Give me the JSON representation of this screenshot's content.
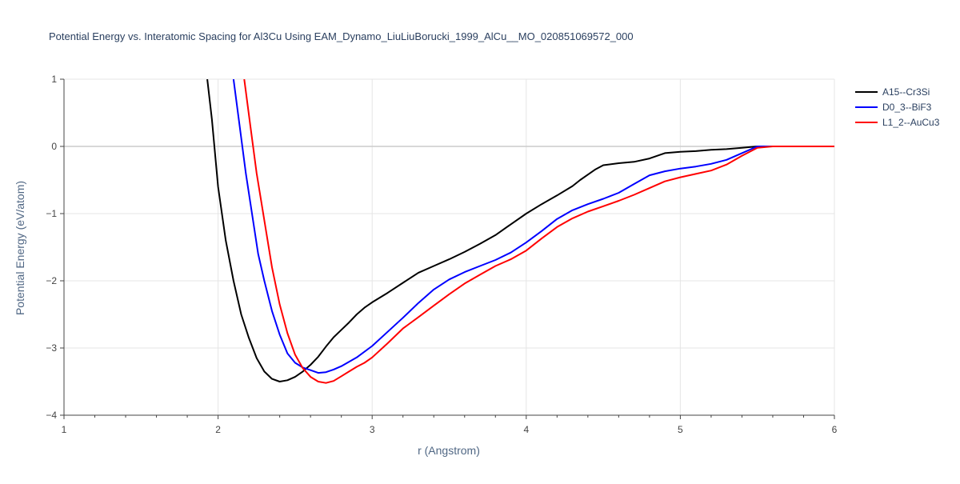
{
  "chart_data": {
    "type": "line",
    "title": "Potential Energy vs. Interatomic Spacing for Al3Cu Using EAM_Dynamo_LiuLiuBorucki_1999_AlCu__MO_020851069572_000",
    "xlabel": "r (Angstrom)",
    "ylabel": "Potential Energy (eV/atom)",
    "xlim": [
      1,
      6
    ],
    "ylim": [
      -4,
      1
    ],
    "xticks": [
      1,
      2,
      3,
      4,
      5,
      6
    ],
    "xtick_labels": [
      "1",
      "2",
      "3",
      "4",
      "5",
      "6"
    ],
    "yticks": [
      1,
      0,
      -1,
      -2,
      -3,
      -4
    ],
    "ytick_labels": [
      "1",
      "0",
      "−1",
      "−2",
      "−3",
      "−4"
    ],
    "grid": true,
    "legend_position": "top-right",
    "series": [
      {
        "name": "A15--Cr3Si",
        "color": "#000000",
        "points": [
          [
            1.93,
            1.0
          ],
          [
            1.96,
            0.4
          ],
          [
            2.0,
            -0.6
          ],
          [
            2.05,
            -1.4
          ],
          [
            2.1,
            -2.0
          ],
          [
            2.15,
            -2.5
          ],
          [
            2.2,
            -2.85
          ],
          [
            2.25,
            -3.15
          ],
          [
            2.3,
            -3.35
          ],
          [
            2.35,
            -3.46
          ],
          [
            2.4,
            -3.5
          ],
          [
            2.45,
            -3.48
          ],
          [
            2.5,
            -3.43
          ],
          [
            2.55,
            -3.35
          ],
          [
            2.6,
            -3.25
          ],
          [
            2.65,
            -3.13
          ],
          [
            2.7,
            -2.98
          ],
          [
            2.75,
            -2.84
          ],
          [
            2.8,
            -2.73
          ],
          [
            2.85,
            -2.62
          ],
          [
            2.9,
            -2.5
          ],
          [
            2.95,
            -2.4
          ],
          [
            3.0,
            -2.32
          ],
          [
            3.1,
            -2.18
          ],
          [
            3.2,
            -2.03
          ],
          [
            3.3,
            -1.88
          ],
          [
            3.4,
            -1.78
          ],
          [
            3.5,
            -1.68
          ],
          [
            3.6,
            -1.57
          ],
          [
            3.7,
            -1.45
          ],
          [
            3.8,
            -1.32
          ],
          [
            3.9,
            -1.16
          ],
          [
            4.0,
            -1.0
          ],
          [
            4.1,
            -0.86
          ],
          [
            4.2,
            -0.73
          ],
          [
            4.3,
            -0.59
          ],
          [
            4.35,
            -0.5
          ],
          [
            4.4,
            -0.42
          ],
          [
            4.45,
            -0.34
          ],
          [
            4.5,
            -0.28
          ],
          [
            4.6,
            -0.25
          ],
          [
            4.7,
            -0.23
          ],
          [
            4.8,
            -0.18
          ],
          [
            4.9,
            -0.1
          ],
          [
            5.0,
            -0.08
          ],
          [
            5.1,
            -0.07
          ],
          [
            5.2,
            -0.05
          ],
          [
            5.3,
            -0.04
          ],
          [
            5.4,
            -0.02
          ],
          [
            5.5,
            0.0
          ],
          [
            5.6,
            0.0
          ],
          [
            5.8,
            0.0
          ],
          [
            6.0,
            0.0
          ]
        ]
      },
      {
        "name": "D0_3--BiF3",
        "color": "#0000ff",
        "points": [
          [
            2.1,
            1.0
          ],
          [
            2.14,
            0.3
          ],
          [
            2.18,
            -0.4
          ],
          [
            2.22,
            -1.0
          ],
          [
            2.26,
            -1.6
          ],
          [
            2.3,
            -2.0
          ],
          [
            2.35,
            -2.45
          ],
          [
            2.4,
            -2.8
          ],
          [
            2.45,
            -3.08
          ],
          [
            2.5,
            -3.22
          ],
          [
            2.55,
            -3.29
          ],
          [
            2.6,
            -3.33
          ],
          [
            2.65,
            -3.37
          ],
          [
            2.7,
            -3.36
          ],
          [
            2.75,
            -3.32
          ],
          [
            2.8,
            -3.27
          ],
          [
            2.9,
            -3.14
          ],
          [
            3.0,
            -2.97
          ],
          [
            3.1,
            -2.76
          ],
          [
            3.2,
            -2.55
          ],
          [
            3.3,
            -2.33
          ],
          [
            3.4,
            -2.13
          ],
          [
            3.5,
            -1.98
          ],
          [
            3.6,
            -1.87
          ],
          [
            3.7,
            -1.78
          ],
          [
            3.8,
            -1.69
          ],
          [
            3.9,
            -1.58
          ],
          [
            4.0,
            -1.43
          ],
          [
            4.1,
            -1.26
          ],
          [
            4.2,
            -1.08
          ],
          [
            4.3,
            -0.95
          ],
          [
            4.4,
            -0.86
          ],
          [
            4.5,
            -0.78
          ],
          [
            4.6,
            -0.69
          ],
          [
            4.7,
            -0.56
          ],
          [
            4.8,
            -0.43
          ],
          [
            4.9,
            -0.37
          ],
          [
            5.0,
            -0.33
          ],
          [
            5.1,
            -0.3
          ],
          [
            5.2,
            -0.26
          ],
          [
            5.3,
            -0.2
          ],
          [
            5.4,
            -0.1
          ],
          [
            5.5,
            0.0
          ],
          [
            5.6,
            0.0
          ],
          [
            5.8,
            0.0
          ],
          [
            6.0,
            0.0
          ]
        ]
      },
      {
        "name": "L1_2--AuCu3",
        "color": "#ff0000",
        "points": [
          [
            2.17,
            1.0
          ],
          [
            2.21,
            0.3
          ],
          [
            2.25,
            -0.4
          ],
          [
            2.3,
            -1.1
          ],
          [
            2.35,
            -1.8
          ],
          [
            2.4,
            -2.35
          ],
          [
            2.45,
            -2.78
          ],
          [
            2.5,
            -3.1
          ],
          [
            2.55,
            -3.3
          ],
          [
            2.6,
            -3.43
          ],
          [
            2.65,
            -3.5
          ],
          [
            2.7,
            -3.52
          ],
          [
            2.75,
            -3.49
          ],
          [
            2.8,
            -3.42
          ],
          [
            2.85,
            -3.35
          ],
          [
            2.9,
            -3.28
          ],
          [
            2.95,
            -3.22
          ],
          [
            3.0,
            -3.14
          ],
          [
            3.1,
            -2.93
          ],
          [
            3.2,
            -2.71
          ],
          [
            3.3,
            -2.54
          ],
          [
            3.4,
            -2.37
          ],
          [
            3.5,
            -2.2
          ],
          [
            3.6,
            -2.04
          ],
          [
            3.7,
            -1.91
          ],
          [
            3.8,
            -1.78
          ],
          [
            3.9,
            -1.68
          ],
          [
            4.0,
            -1.55
          ],
          [
            4.1,
            -1.37
          ],
          [
            4.2,
            -1.2
          ],
          [
            4.3,
            -1.07
          ],
          [
            4.4,
            -0.97
          ],
          [
            4.5,
            -0.89
          ],
          [
            4.6,
            -0.81
          ],
          [
            4.7,
            -0.72
          ],
          [
            4.8,
            -0.62
          ],
          [
            4.9,
            -0.52
          ],
          [
            5.0,
            -0.46
          ],
          [
            5.1,
            -0.41
          ],
          [
            5.2,
            -0.36
          ],
          [
            5.3,
            -0.27
          ],
          [
            5.4,
            -0.14
          ],
          [
            5.5,
            -0.02
          ],
          [
            5.6,
            0.0
          ],
          [
            5.8,
            0.0
          ],
          [
            6.0,
            0.0
          ]
        ]
      }
    ]
  }
}
